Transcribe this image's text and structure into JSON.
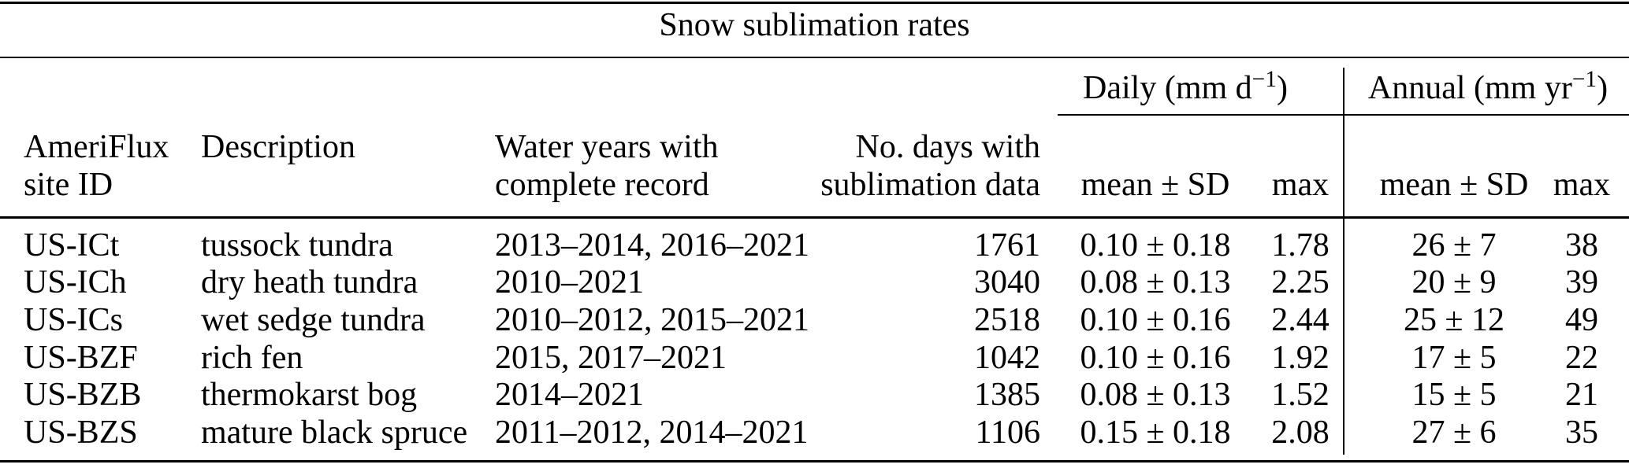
{
  "title": "Snow sublimation rates",
  "groups": {
    "daily": {
      "prefix": "Daily (mm d",
      "sup": "−1",
      "suffix": ")"
    },
    "annual": {
      "prefix": "Annual (mm yr",
      "sup": "−1",
      "suffix": ")"
    }
  },
  "columns": {
    "site_id": {
      "line1": "AmeriFlux",
      "line2": "site ID"
    },
    "description": "Description",
    "water_years": {
      "line1": "Water years with",
      "line2": "complete record"
    },
    "n_days": {
      "line1": "No. days with",
      "line2": "sublimation data"
    },
    "daily_mean": "mean ± SD",
    "daily_max": "max",
    "annual_mean": "mean ± SD",
    "annual_max": "max"
  },
  "rows": [
    {
      "site_id": "US-ICt",
      "description": "tussock tundra",
      "water_years": "2013–2014, 2016–2021",
      "n_days": "1761",
      "daily_mean": "0.10 ± 0.18",
      "daily_max": "1.78",
      "annual_mean": "26 ± 7",
      "annual_max": "38"
    },
    {
      "site_id": "US-ICh",
      "description": "dry heath tundra",
      "water_years": "2010–2021",
      "n_days": "3040",
      "daily_mean": "0.08 ± 0.13",
      "daily_max": "2.25",
      "annual_mean": "20 ± 9",
      "annual_max": "39"
    },
    {
      "site_id": "US-ICs",
      "description": "wet sedge tundra",
      "water_years": "2010–2012, 2015–2021",
      "n_days": "2518",
      "daily_mean": "0.10 ± 0.16",
      "daily_max": "2.44",
      "annual_mean": "25 ± 12",
      "annual_max": "49"
    },
    {
      "site_id": "US-BZF",
      "description": "rich fen",
      "water_years": "2015, 2017–2021",
      "n_days": "1042",
      "daily_mean": "0.10 ± 0.16",
      "daily_max": "1.92",
      "annual_mean": "17 ± 5",
      "annual_max": "22"
    },
    {
      "site_id": "US-BZB",
      "description": "thermokarst bog",
      "water_years": "2014–2021",
      "n_days": "1385",
      "daily_mean": "0.08 ± 0.13",
      "daily_max": "1.52",
      "annual_mean": "15 ± 5",
      "annual_max": "21"
    },
    {
      "site_id": "US-BZS",
      "description": "mature black spruce",
      "water_years": "2011–2012, 2014–2021",
      "n_days": "1106",
      "daily_mean": "0.15 ± 0.18",
      "daily_max": "2.08",
      "annual_mean": "27 ± 6",
      "annual_max": "35"
    }
  ],
  "colors": {
    "text": "#000000",
    "background": "#ffffff",
    "rule": "#000000"
  },
  "chart_data": {
    "type": "table",
    "title": "Snow sublimation rates",
    "headers": [
      "AmeriFlux site ID",
      "Description",
      "Water years with complete record",
      "No. days with sublimation data",
      "Daily (mm d−1) mean ± SD",
      "Daily (mm d−1) max",
      "Annual (mm yr−1) mean ± SD",
      "Annual (mm yr−1) max"
    ],
    "rows": [
      [
        "US-ICt",
        "tussock tundra",
        "2013–2014, 2016–2021",
        1761,
        "0.10 ± 0.18",
        1.78,
        "26 ± 7",
        38
      ],
      [
        "US-ICh",
        "dry heath tundra",
        "2010–2021",
        3040,
        "0.08 ± 0.13",
        2.25,
        "20 ± 9",
        39
      ],
      [
        "US-ICs",
        "wet sedge tundra",
        "2010–2012, 2015–2021",
        2518,
        "0.10 ± 0.16",
        2.44,
        "25 ± 12",
        49
      ],
      [
        "US-BZF",
        "rich fen",
        "2015, 2017–2021",
        1042,
        "0.10 ± 0.16",
        1.92,
        "17 ± 5",
        22
      ],
      [
        "US-BZB",
        "thermokarst bog",
        "2014–2021",
        1385,
        "0.08 ± 0.13",
        1.52,
        "15 ± 5",
        21
      ],
      [
        "US-BZS",
        "mature black spruce",
        "2011–2012, 2014–2021",
        1106,
        "0.15 ± 0.18",
        2.08,
        "27 ± 6",
        35
      ]
    ]
  }
}
